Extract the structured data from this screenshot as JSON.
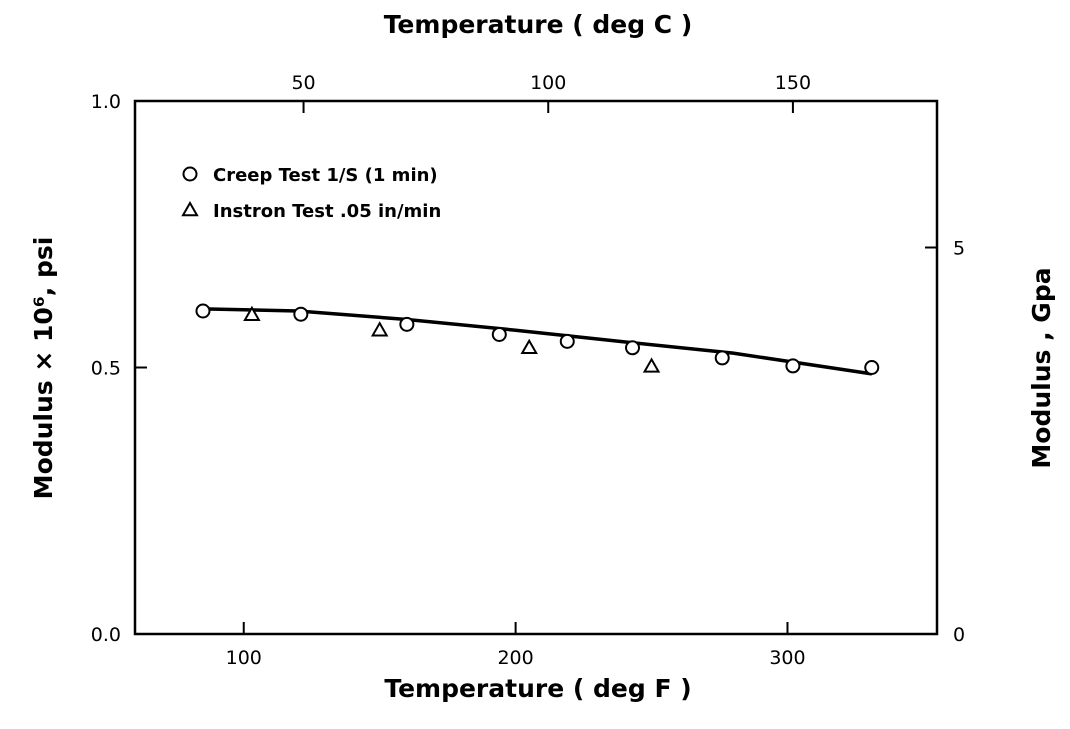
{
  "chart_data": {
    "type": "scatter",
    "title": "",
    "xlabel": "Temperature ( deg F )",
    "x2label": "Temperature ( deg C )",
    "ylabel": "Modulus × 10⁶, psi",
    "y2label": "Modulus , Gpa",
    "xlim": [
      60,
      355
    ],
    "ylim": [
      0.0,
      1.0
    ],
    "y2lim": [
      0,
      6.895
    ],
    "x_ticks": [
      100,
      200,
      300
    ],
    "x_tick_labels": [
      "100",
      "200",
      "300"
    ],
    "x2_ticks_degC": [
      50,
      100,
      150
    ],
    "x2_tick_labels": [
      "50",
      "100",
      "150"
    ],
    "y_ticks": [
      0.0,
      0.5,
      1.0
    ],
    "y_tick_labels": [
      "0.0",
      "0.5",
      "1.0"
    ],
    "y2_ticks_gpa": [
      0,
      5
    ],
    "y2_tick_labels": [
      "0",
      "5"
    ],
    "grid": false,
    "legend_position": "top-left",
    "series": [
      {
        "name": "Creep Test 1/S (1 min)",
        "marker": "circle",
        "x": [
          85,
          121,
          160,
          194,
          219,
          243,
          276,
          302,
          331
        ],
        "y": [
          0.606,
          0.6,
          0.581,
          0.562,
          0.549,
          0.537,
          0.518,
          0.503,
          0.5
        ]
      },
      {
        "name": "Instron Test .05 in/min",
        "marker": "triangle",
        "x": [
          103,
          150,
          205,
          250
        ],
        "y": [
          0.599,
          0.57,
          0.537,
          0.502
        ]
      }
    ],
    "fit_line": {
      "x": [
        85,
        120,
        160,
        200,
        240,
        280,
        331
      ],
      "y": [
        0.61,
        0.606,
        0.59,
        0.57,
        0.548,
        0.527,
        0.488
      ]
    }
  }
}
